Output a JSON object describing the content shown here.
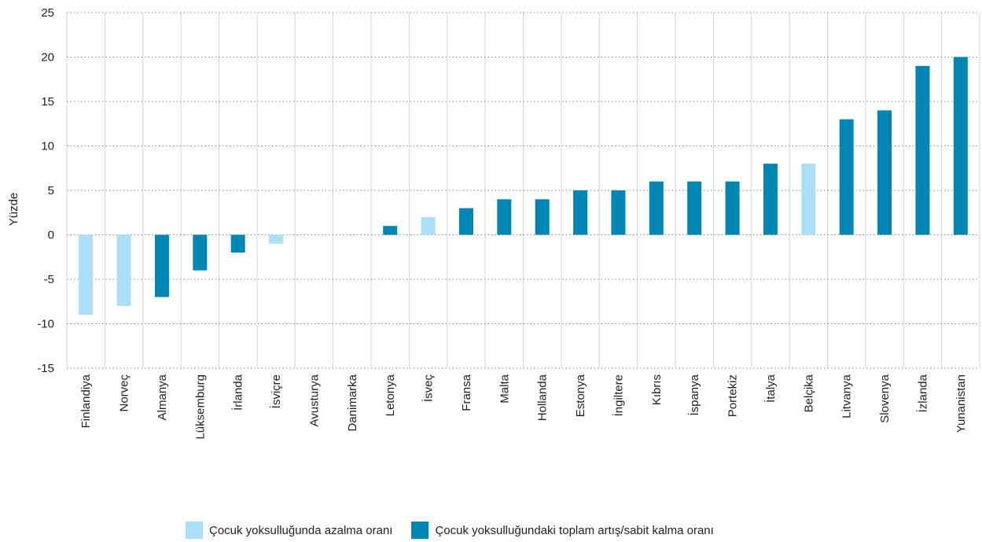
{
  "chart_data": {
    "type": "bar",
    "ylabel": "Yüzde",
    "ylim": [
      -15,
      25
    ],
    "yticks": [
      25,
      20,
      15,
      10,
      5,
      0,
      -5,
      -10,
      -15
    ],
    "ytick_labels": [
      "25",
      "20",
      "15",
      "10",
      "5",
      "0",
      "-5",
      "-10",
      "-15"
    ],
    "grid": true,
    "categories": [
      "Finlandiya",
      "Norveç",
      "Almanya",
      "Lüksemburg",
      "İrlanda",
      "İsviçre",
      "Avusturya",
      "Danimarka",
      "Letonya",
      "İsveç",
      "Fransa",
      "Malta",
      "Hollanda",
      "Estonya",
      "İngiltere",
      "Kıbrıs",
      "İspanya",
      "Portekiz",
      "İtalya",
      "Belçika",
      "Litvanya",
      "Slovenya",
      "İzlanda",
      "Yunanistan"
    ],
    "series": [
      {
        "name": "Çocuk yoksulluğunda azalma oranı",
        "color": "#aadff5",
        "values": [
          -9,
          -8,
          null,
          null,
          null,
          -1,
          null,
          null,
          null,
          2,
          null,
          null,
          null,
          null,
          null,
          null,
          null,
          null,
          null,
          8,
          null,
          null,
          null,
          null
        ]
      },
      {
        "name": "Çocuk yoksulluğundaki toplam artış/sabit kalma oranı",
        "color": "#0086b3",
        "values": [
          null,
          null,
          -7,
          -4,
          -2,
          null,
          null,
          null,
          1,
          null,
          3,
          4,
          4,
          5,
          5,
          6,
          6,
          6,
          8,
          null,
          13,
          14,
          19,
          20
        ]
      }
    ],
    "legend_position": "bottom"
  }
}
